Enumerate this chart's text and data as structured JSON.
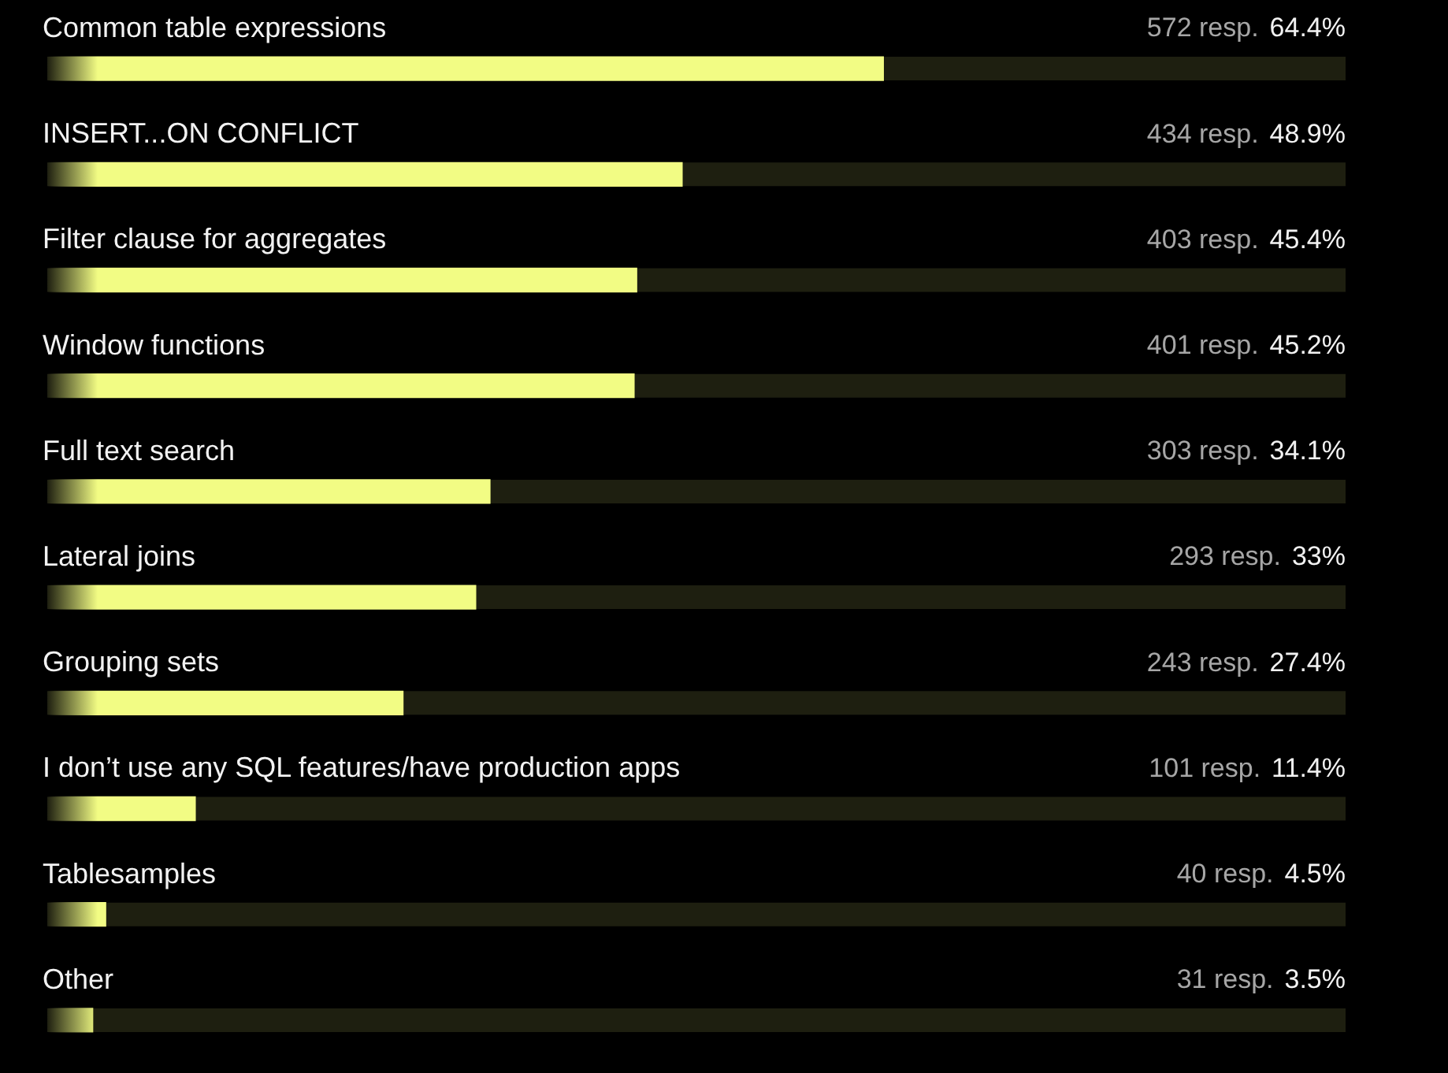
{
  "chart_data": {
    "type": "bar",
    "orientation": "horizontal",
    "tick_labels": "y",
    "categories": [
      "Common table expressions",
      "INSERT...ON CONFLICT",
      "Filter clause for aggregates",
      "Window functions",
      "Full text search",
      "Lateral joins",
      "Grouping sets",
      "I don’t use any SQL features/have production apps",
      "Tablesamples",
      "Other"
    ],
    "values": [
      64.4,
      48.9,
      45.4,
      45.2,
      34.1,
      33,
      27.4,
      11.4,
      4.5,
      3.5
    ],
    "value_labels": [
      "64.4%",
      "48.9%",
      "45.4%",
      "45.2%",
      "34.1%",
      "33%",
      "27.4%",
      "11.4%",
      "4.5%",
      "3.5%"
    ],
    "annotations": [
      "572 resp.",
      "434 resp.",
      "403 resp.",
      "401 resp.",
      "303 resp.",
      "293 resp.",
      "243 resp.",
      "101 resp.",
      "40 resp.",
      "31 resp."
    ],
    "color": "#f2fc84",
    "xlim": [
      0,
      100
    ]
  }
}
